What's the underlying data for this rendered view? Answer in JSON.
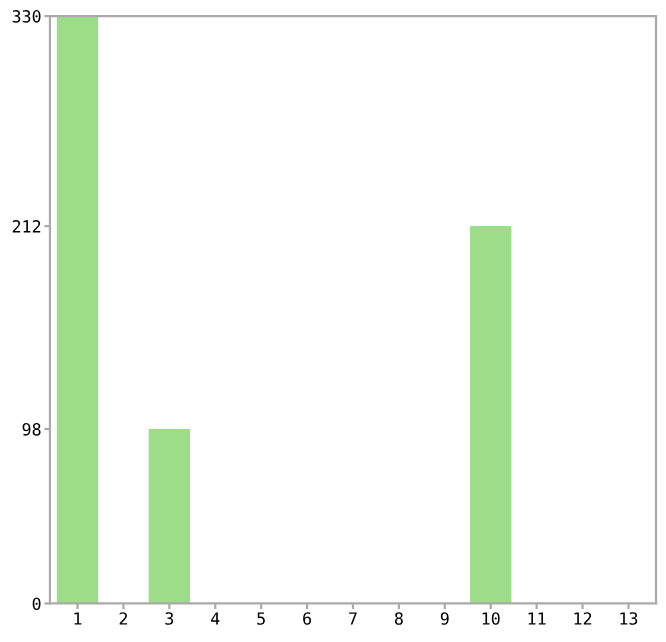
{
  "chart_data": {
    "type": "bar",
    "categories": [
      "1",
      "2",
      "3",
      "4",
      "5",
      "6",
      "7",
      "8",
      "9",
      "10",
      "11",
      "12",
      "13"
    ],
    "values": [
      330,
      0,
      98,
      0,
      0,
      0,
      0,
      0,
      0,
      212,
      0,
      0,
      0
    ],
    "color": "#9ddc88",
    "ylim": [
      0,
      330
    ],
    "yticks": [
      0,
      98,
      212,
      330
    ],
    "grid": false
  }
}
